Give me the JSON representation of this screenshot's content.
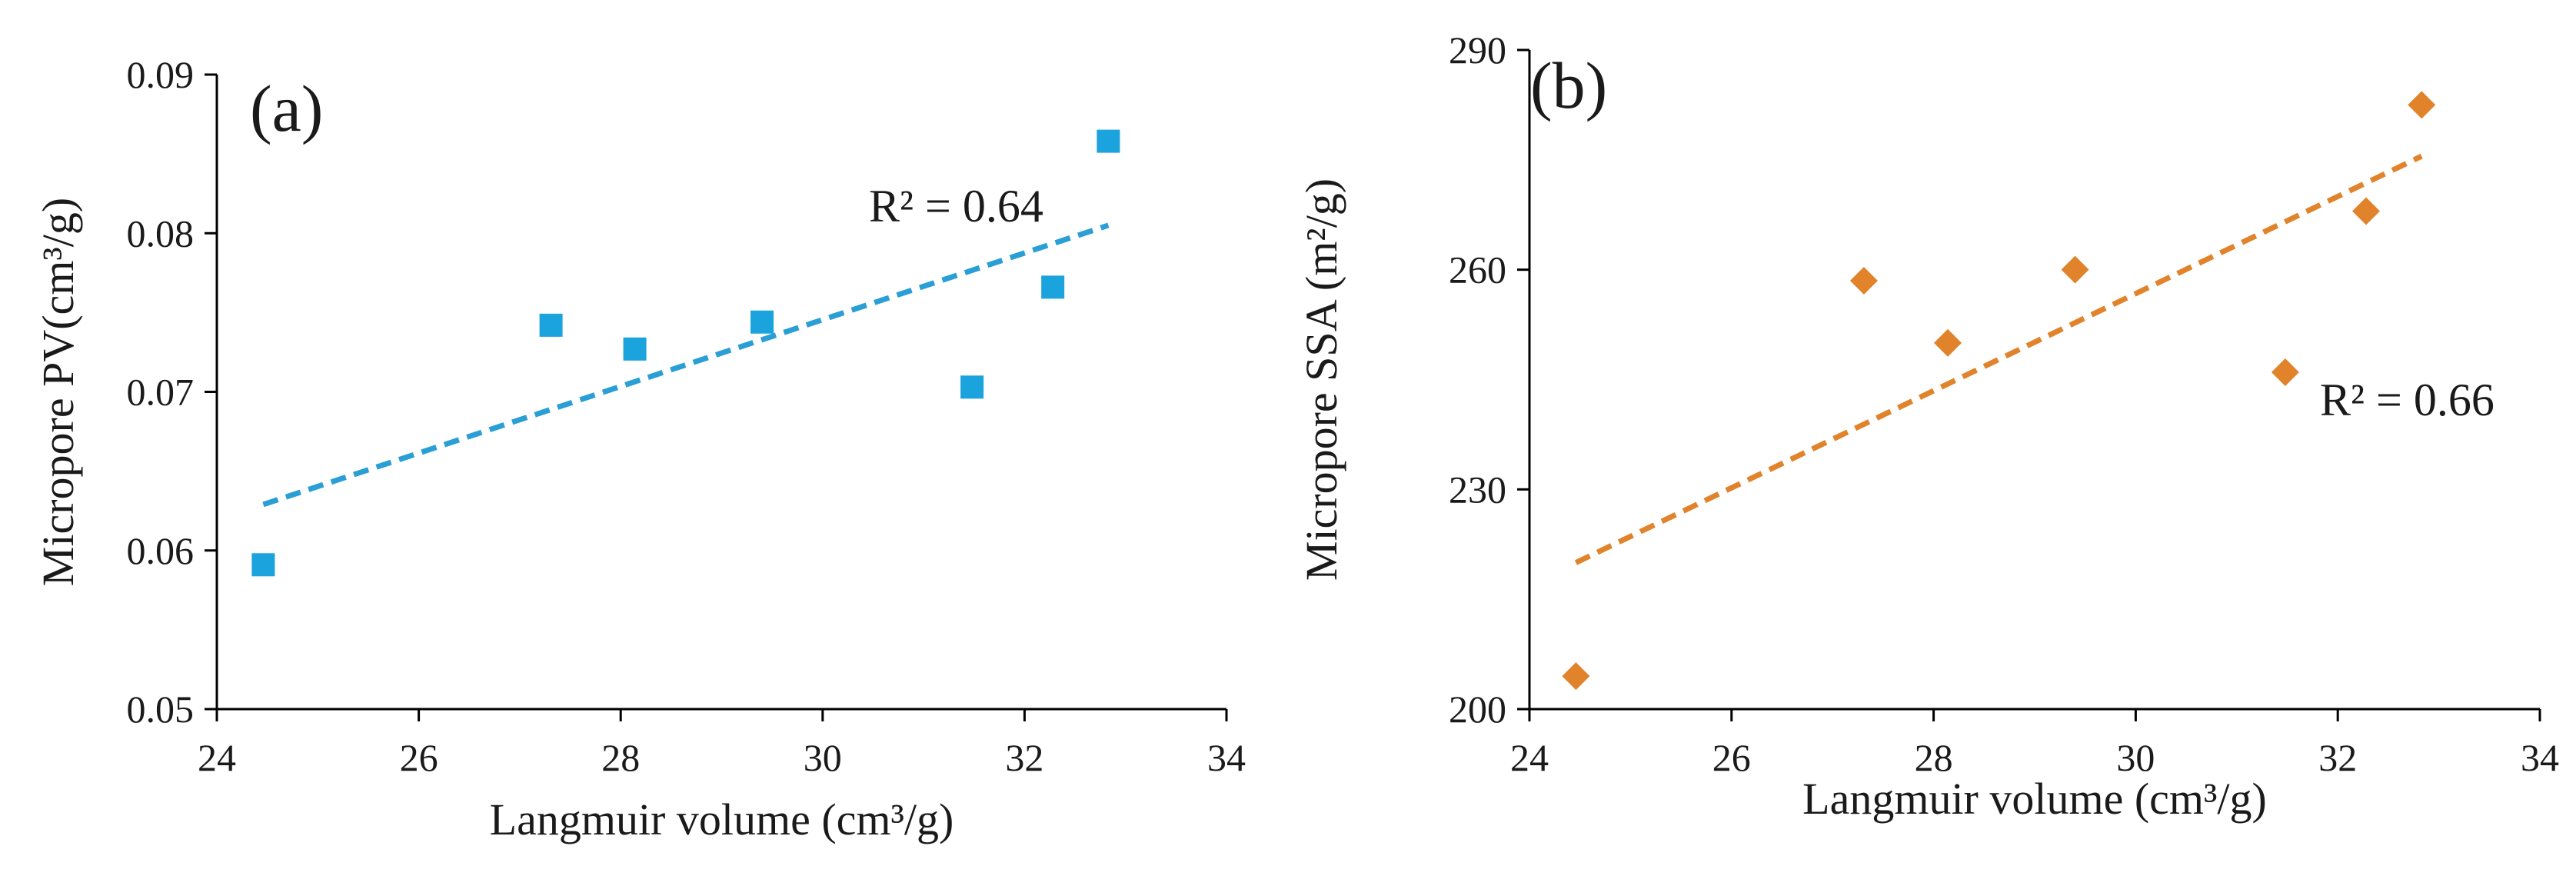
{
  "chart_data": [
    {
      "type": "scatter",
      "panel_label": "(a)",
      "xlabel": "Langmuir volume (cm³/g)",
      "ylabel": "Micropore PV(cm³/g)",
      "xlim": [
        24,
        34
      ],
      "ylim": [
        0.05,
        0.09
      ],
      "x_ticks": [
        "24",
        "26",
        "28",
        "30",
        "32",
        "34"
      ],
      "y_ticks": [
        "0.05",
        "0.06",
        "0.07",
        "0.08",
        "0.09"
      ],
      "marker": "square",
      "color": "#1aa3dc",
      "trend_color": "#2a9fd6",
      "series": [
        {
          "name": "Micropore PV",
          "x": [
            24.46,
            27.31,
            28.14,
            29.4,
            31.48,
            32.28,
            32.83
          ],
          "y": [
            0.0591,
            0.0742,
            0.0727,
            0.0744,
            0.0703,
            0.0766,
            0.0858
          ]
        }
      ],
      "trendline": {
        "x": [
          24.46,
          32.83
        ],
        "y": [
          0.0629,
          0.0805
        ]
      },
      "r2_label": "R² = 0.64"
    },
    {
      "type": "scatter",
      "panel_label": "(b)",
      "xlabel": "Langmuir volume (cm³/g)",
      "ylabel": "Micropore SSA (m²/g)",
      "xlim": [
        24,
        34
      ],
      "ylim": [
        200,
        290
      ],
      "x_ticks": [
        "24",
        "26",
        "28",
        "30",
        "32",
        "34"
      ],
      "y_ticks": [
        "200",
        "230",
        "260",
        "290"
      ],
      "marker": "diamond",
      "color": "#e0832b",
      "trend_color": "#e0832b",
      "series": [
        {
          "name": "Micropore SSA",
          "x": [
            24.46,
            27.31,
            28.14,
            29.4,
            31.48,
            32.28,
            32.83
          ],
          "y": [
            204.5,
            258.5,
            250,
            260,
            246,
            268,
            282.5
          ]
        }
      ],
      "trendline": {
        "x": [
          24.46,
          32.83
        ],
        "y": [
          220,
          275.5
        ]
      },
      "r2_label": "R² = 0.66"
    }
  ]
}
